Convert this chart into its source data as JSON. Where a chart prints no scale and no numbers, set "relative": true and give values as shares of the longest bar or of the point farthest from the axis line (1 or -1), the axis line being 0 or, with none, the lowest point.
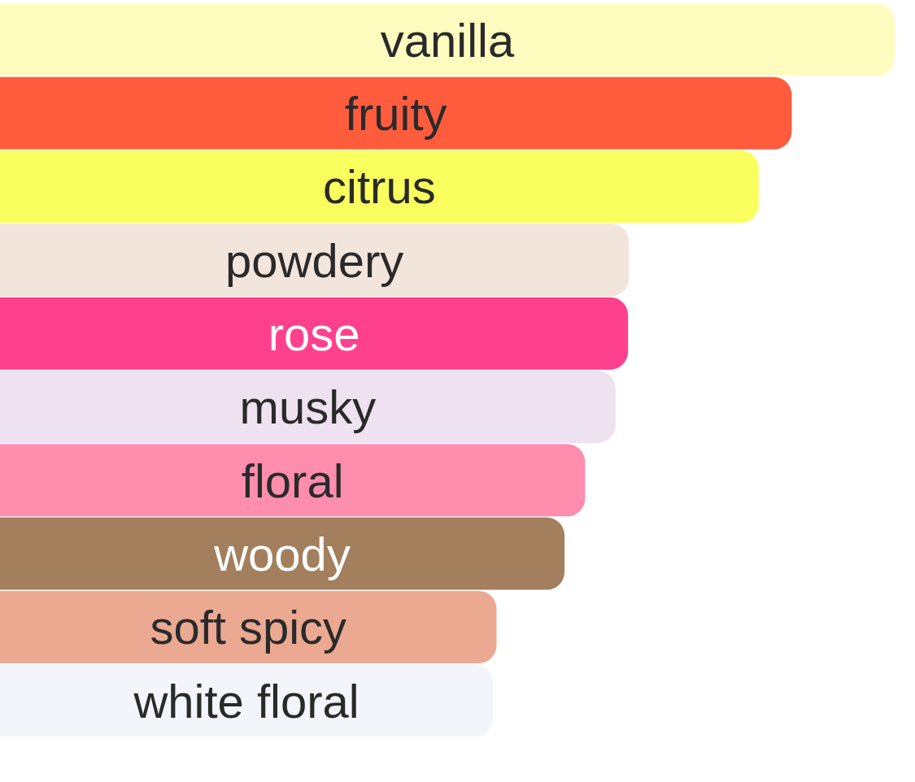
{
  "chart_data": {
    "type": "bar",
    "orientation": "horizontal",
    "relative": true,
    "categories": [
      "vanilla",
      "fruity",
      "citrus",
      "powdery",
      "rose",
      "musky",
      "floral",
      "woody",
      "soft spicy",
      "white floral"
    ],
    "values": [
      1,
      0.885,
      0.848,
      0.703,
      0.702,
      0.688,
      0.654,
      0.631,
      0.555,
      0.551
    ],
    "colors": [
      "#fffcc0",
      "#ff5c3e",
      "#f9ff5d",
      "#f2e5dc",
      "#ff418d",
      "#efe2f0",
      "#ff8dae",
      "#a37f5e",
      "#eba991",
      "#f4f5fb"
    ]
  }
}
